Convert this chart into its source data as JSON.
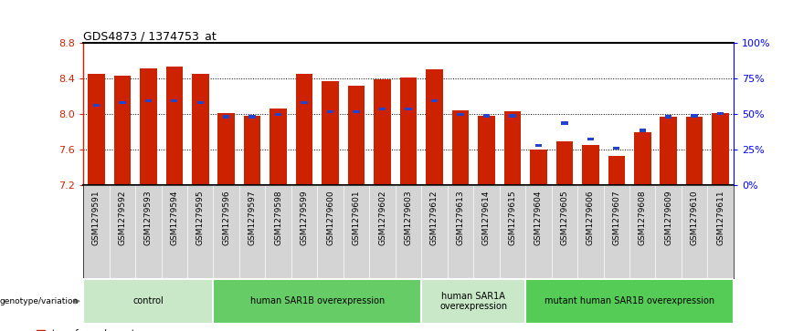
{
  "title": "GDS4873 / 1374753_at",
  "samples": [
    "GSM1279591",
    "GSM1279592",
    "GSM1279593",
    "GSM1279594",
    "GSM1279595",
    "GSM1279596",
    "GSM1279597",
    "GSM1279598",
    "GSM1279599",
    "GSM1279600",
    "GSM1279601",
    "GSM1279602",
    "GSM1279603",
    "GSM1279612",
    "GSM1279613",
    "GSM1279614",
    "GSM1279615",
    "GSM1279604",
    "GSM1279605",
    "GSM1279606",
    "GSM1279607",
    "GSM1279608",
    "GSM1279609",
    "GSM1279610",
    "GSM1279611"
  ],
  "red_values": [
    8.45,
    8.43,
    8.51,
    8.54,
    8.45,
    8.01,
    7.98,
    8.06,
    8.45,
    8.37,
    8.32,
    8.39,
    8.41,
    8.5,
    8.04,
    7.98,
    8.03,
    7.6,
    7.7,
    7.65,
    7.53,
    7.8,
    7.97,
    7.97,
    8.01
  ],
  "blue_values": [
    8.1,
    8.13,
    8.15,
    8.15,
    8.13,
    7.97,
    7.97,
    8.0,
    8.13,
    8.03,
    8.03,
    8.06,
    8.06,
    8.15,
    8.0,
    7.98,
    7.98,
    7.65,
    7.9,
    7.72,
    7.62,
    7.82,
    7.97,
    7.98,
    8.01
  ],
  "groups": [
    {
      "label": "control",
      "start": 0,
      "end": 5,
      "color": "#c8e8c8"
    },
    {
      "label": "human SAR1B overexpression",
      "start": 5,
      "end": 13,
      "color": "#66cc66"
    },
    {
      "label": "human SAR1A\noverexpression",
      "start": 13,
      "end": 17,
      "color": "#c8e8c8"
    },
    {
      "label": "mutant human SAR1B overexpression",
      "start": 17,
      "end": 25,
      "color": "#55cc55"
    }
  ],
  "ylim": [
    7.2,
    8.8
  ],
  "yticks_left": [
    7.2,
    7.6,
    8.0,
    8.4,
    8.8
  ],
  "yticks_right": [
    0,
    25,
    50,
    75,
    100
  ],
  "bar_color": "#cc2200",
  "blue_color": "#2244cc",
  "xtick_bg": "#d4d4d4",
  "background_color": "#ffffff"
}
